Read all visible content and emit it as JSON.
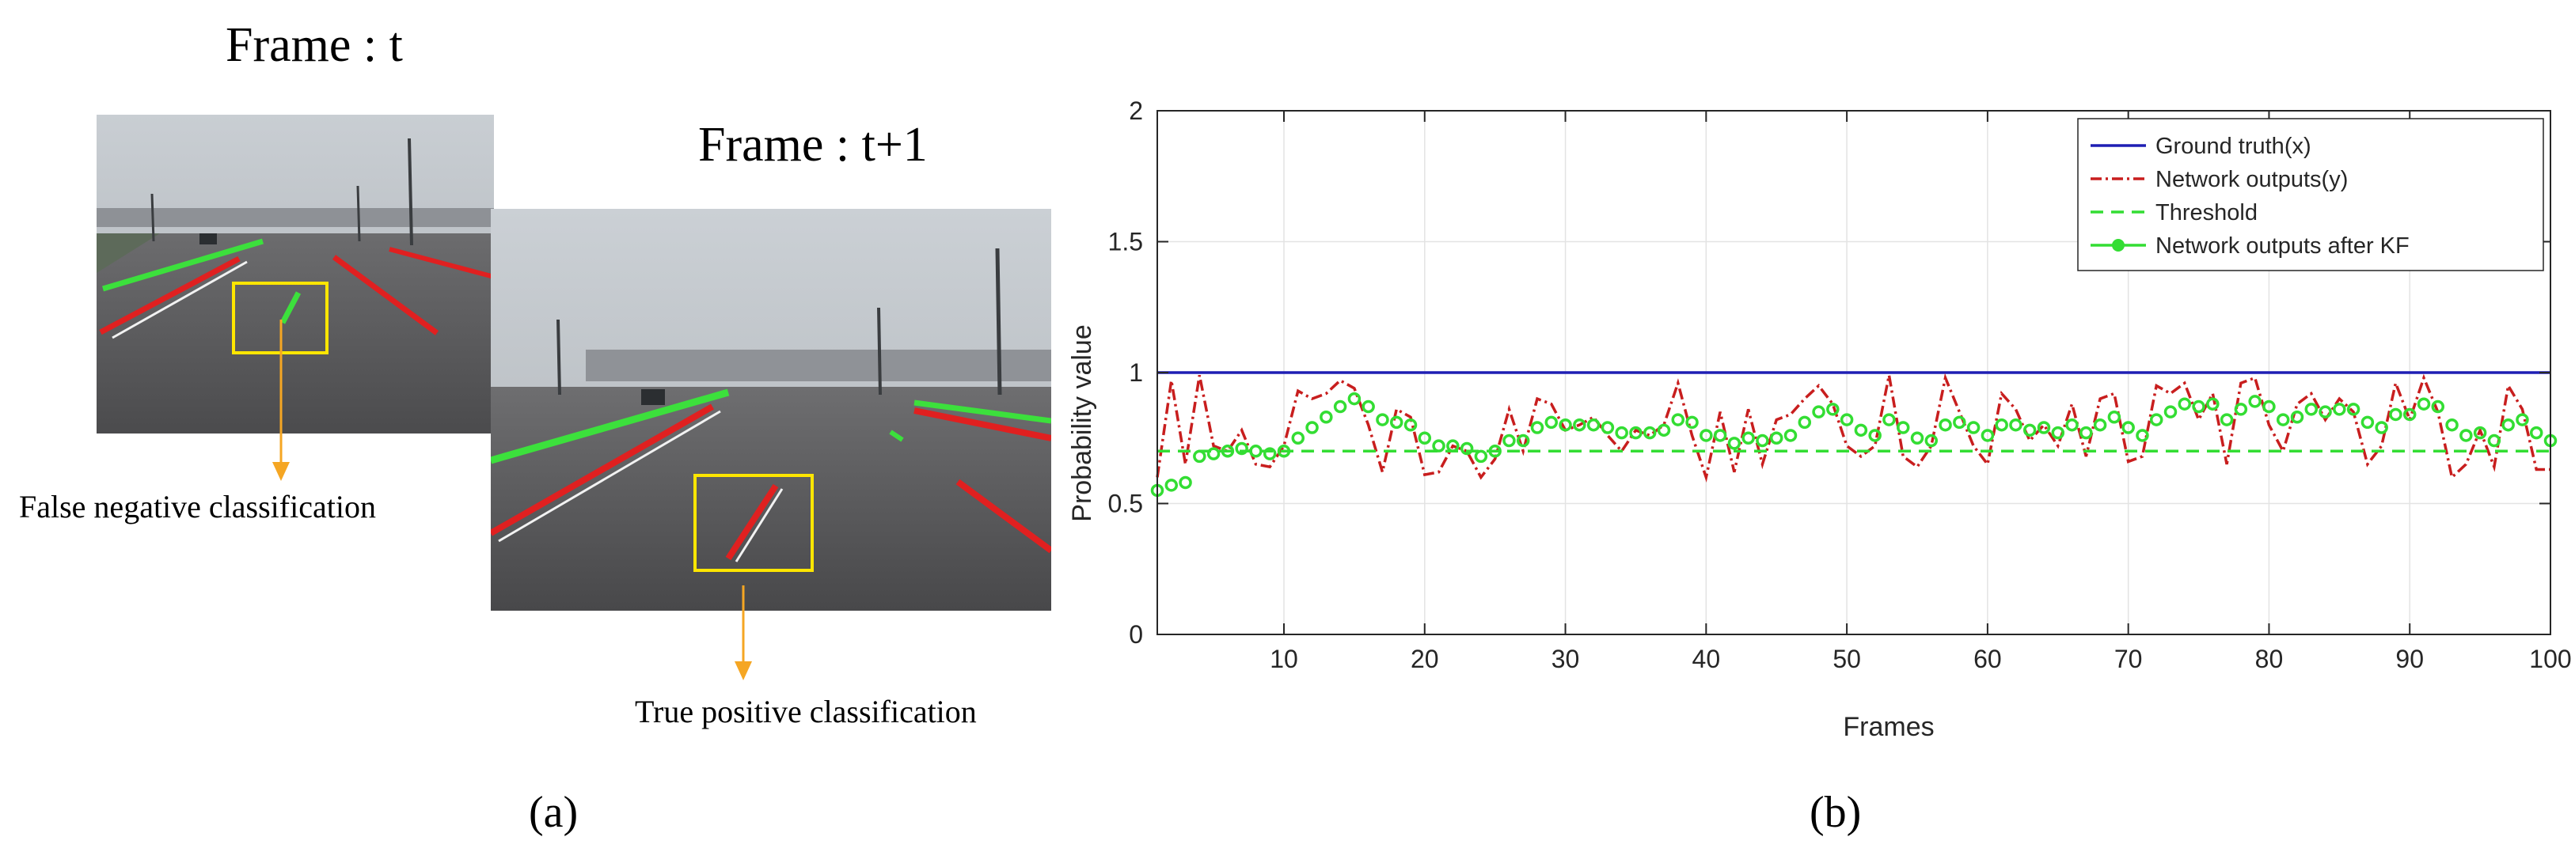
{
  "panel_a": {
    "frame_t_title": "Frame : t",
    "frame_t1_title": "Frame : t+1",
    "false_negative_label": "False negative classification",
    "true_positive_label": "True positive classification",
    "caption": "(a)"
  },
  "panel_b": {
    "caption": "(b)"
  },
  "colors": {
    "ground_truth": "#1f1fb4",
    "network_outputs": "#c81e1e",
    "threshold": "#33dd33",
    "kf_outputs": "#33dd33",
    "box_highlight": "#ffe600",
    "arrow": "#f5a623"
  },
  "chart_data": {
    "type": "line",
    "xlabel": "Frames",
    "ylabel": "Probability value",
    "xlim": [
      1,
      100
    ],
    "ylim": [
      0,
      2
    ],
    "xticks": [
      10,
      20,
      30,
      40,
      50,
      60,
      70,
      80,
      90,
      100
    ],
    "yticks": [
      0,
      0.5,
      1,
      1.5,
      2
    ],
    "grid": true,
    "legend_position": "top-right",
    "x": [
      1,
      2,
      3,
      4,
      5,
      6,
      7,
      8,
      9,
      10,
      11,
      12,
      13,
      14,
      15,
      16,
      17,
      18,
      19,
      20,
      21,
      22,
      23,
      24,
      25,
      26,
      27,
      28,
      29,
      30,
      31,
      32,
      33,
      34,
      35,
      36,
      37,
      38,
      39,
      40,
      41,
      42,
      43,
      44,
      45,
      46,
      47,
      48,
      49,
      50,
      51,
      52,
      53,
      54,
      55,
      56,
      57,
      58,
      59,
      60,
      61,
      62,
      63,
      64,
      65,
      66,
      67,
      68,
      69,
      70,
      71,
      72,
      73,
      74,
      75,
      76,
      77,
      78,
      79,
      80,
      81,
      82,
      83,
      84,
      85,
      86,
      87,
      88,
      89,
      90,
      91,
      92,
      93,
      94,
      95,
      96,
      97,
      98,
      99,
      100
    ],
    "series": [
      {
        "name": "Ground truth(x)",
        "style": "solid",
        "values": [
          1,
          1,
          1,
          1,
          1,
          1,
          1,
          1,
          1,
          1,
          1,
          1,
          1,
          1,
          1,
          1,
          1,
          1,
          1,
          1,
          1,
          1,
          1,
          1,
          1,
          1,
          1,
          1,
          1,
          1,
          1,
          1,
          1,
          1,
          1,
          1,
          1,
          1,
          1,
          1,
          1,
          1,
          1,
          1,
          1,
          1,
          1,
          1,
          1,
          1,
          1,
          1,
          1,
          1,
          1,
          1,
          1,
          1,
          1,
          1,
          1,
          1,
          1,
          1,
          1,
          1,
          1,
          1,
          1,
          1,
          1,
          1,
          1,
          1,
          1,
          1,
          1,
          1,
          1,
          1,
          1,
          1,
          1,
          1,
          1,
          1,
          1,
          1,
          1,
          1,
          1,
          1,
          1,
          1,
          1,
          1,
          1,
          1,
          1,
          1
        ]
      },
      {
        "name": "Network outputs(y)",
        "style": "dashdot",
        "values": [
          0.6,
          0.97,
          0.65,
          0.99,
          0.72,
          0.7,
          0.78,
          0.65,
          0.64,
          0.72,
          0.93,
          0.9,
          0.92,
          0.97,
          0.94,
          0.8,
          0.62,
          0.86,
          0.83,
          0.61,
          0.62,
          0.72,
          0.7,
          0.6,
          0.67,
          0.86,
          0.7,
          0.9,
          0.88,
          0.78,
          0.8,
          0.83,
          0.76,
          0.7,
          0.78,
          0.76,
          0.8,
          0.96,
          0.76,
          0.6,
          0.85,
          0.62,
          0.86,
          0.65,
          0.82,
          0.84,
          0.9,
          0.95,
          0.88,
          0.72,
          0.68,
          0.72,
          0.99,
          0.68,
          0.64,
          0.72,
          0.98,
          0.85,
          0.72,
          0.65,
          0.92,
          0.86,
          0.74,
          0.8,
          0.72,
          0.88,
          0.68,
          0.9,
          0.92,
          0.66,
          0.68,
          0.95,
          0.92,
          0.96,
          0.82,
          0.92,
          0.65,
          0.96,
          0.98,
          0.8,
          0.7,
          0.88,
          0.92,
          0.82,
          0.9,
          0.85,
          0.65,
          0.72,
          0.96,
          0.82,
          0.98,
          0.85,
          0.6,
          0.65,
          0.78,
          0.64,
          0.95,
          0.86,
          0.63,
          0.63
        ]
      },
      {
        "name": "Threshold",
        "style": "dashed",
        "values": [
          0.7,
          0.7,
          0.7,
          0.7,
          0.7,
          0.7,
          0.7,
          0.7,
          0.7,
          0.7,
          0.7,
          0.7,
          0.7,
          0.7,
          0.7,
          0.7,
          0.7,
          0.7,
          0.7,
          0.7,
          0.7,
          0.7,
          0.7,
          0.7,
          0.7,
          0.7,
          0.7,
          0.7,
          0.7,
          0.7,
          0.7,
          0.7,
          0.7,
          0.7,
          0.7,
          0.7,
          0.7,
          0.7,
          0.7,
          0.7,
          0.7,
          0.7,
          0.7,
          0.7,
          0.7,
          0.7,
          0.7,
          0.7,
          0.7,
          0.7,
          0.7,
          0.7,
          0.7,
          0.7,
          0.7,
          0.7,
          0.7,
          0.7,
          0.7,
          0.7,
          0.7,
          0.7,
          0.7,
          0.7,
          0.7,
          0.7,
          0.7,
          0.7,
          0.7,
          0.7,
          0.7,
          0.7,
          0.7,
          0.7,
          0.7,
          0.7,
          0.7,
          0.7,
          0.7,
          0.7,
          0.7,
          0.7,
          0.7,
          0.7,
          0.7,
          0.7,
          0.7,
          0.7,
          0.7,
          0.7,
          0.7,
          0.7,
          0.7,
          0.7,
          0.7,
          0.7,
          0.7,
          0.7,
          0.7,
          0.7
        ]
      },
      {
        "name": "Network outputs after KF",
        "style": "markers",
        "values": [
          0.55,
          0.57,
          0.58,
          0.68,
          0.69,
          0.7,
          0.71,
          0.7,
          0.69,
          0.7,
          0.75,
          0.79,
          0.83,
          0.87,
          0.9,
          0.87,
          0.82,
          0.81,
          0.8,
          0.75,
          0.72,
          0.72,
          0.71,
          0.68,
          0.7,
          0.74,
          0.74,
          0.79,
          0.81,
          0.8,
          0.8,
          0.8,
          0.79,
          0.77,
          0.77,
          0.77,
          0.78,
          0.82,
          0.81,
          0.76,
          0.76,
          0.73,
          0.75,
          0.74,
          0.75,
          0.76,
          0.81,
          0.85,
          0.86,
          0.82,
          0.78,
          0.76,
          0.82,
          0.79,
          0.75,
          0.74,
          0.8,
          0.81,
          0.79,
          0.76,
          0.8,
          0.8,
          0.78,
          0.79,
          0.77,
          0.8,
          0.77,
          0.8,
          0.83,
          0.79,
          0.76,
          0.82,
          0.85,
          0.88,
          0.87,
          0.88,
          0.82,
          0.86,
          0.89,
          0.87,
          0.82,
          0.83,
          0.86,
          0.85,
          0.86,
          0.86,
          0.81,
          0.79,
          0.84,
          0.84,
          0.88,
          0.87,
          0.8,
          0.76,
          0.77,
          0.74,
          0.8,
          0.82,
          0.77,
          0.74
        ]
      }
    ]
  }
}
